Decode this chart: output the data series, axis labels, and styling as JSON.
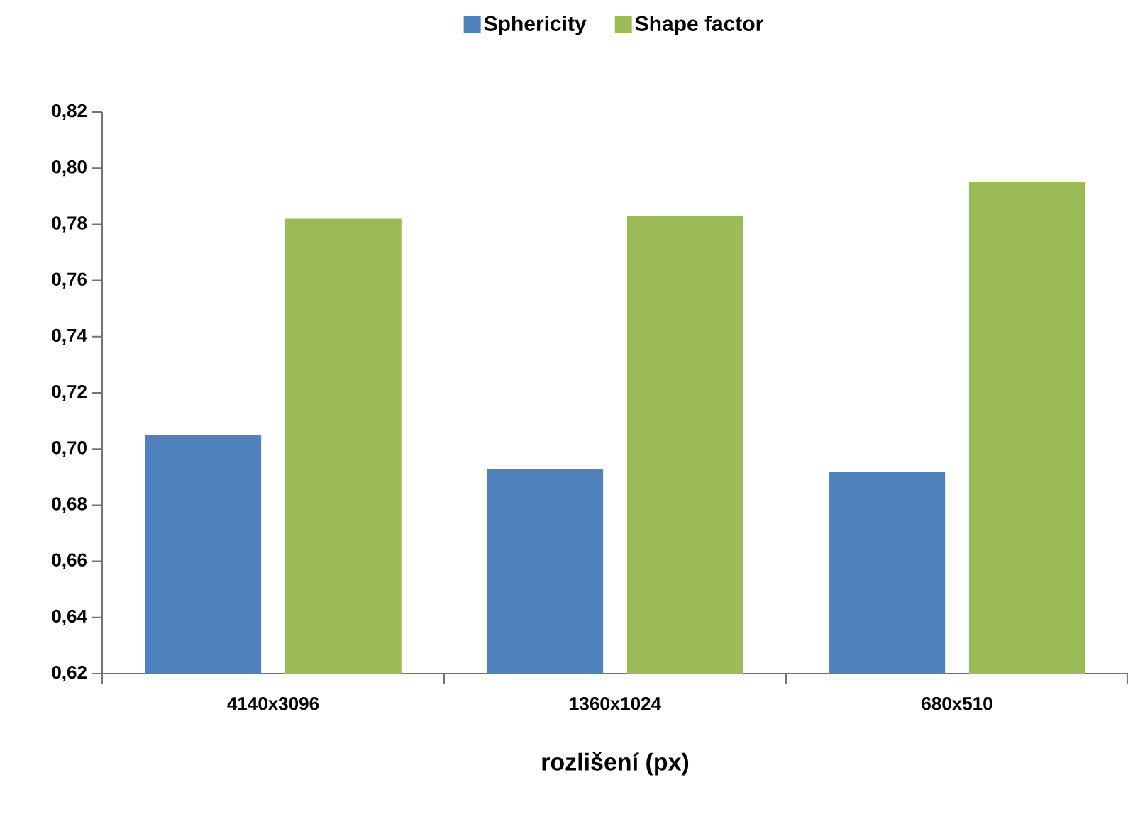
{
  "chart_data": {
    "type": "bar",
    "xlabel": "rozlišení (px)",
    "categories": [
      "4140x3096",
      "1360x1024",
      "680x510"
    ],
    "series": [
      {
        "name": "Sphericity",
        "color": "#4f81bd",
        "values": [
          0.705,
          0.693,
          0.692
        ]
      },
      {
        "name": "Shape factor",
        "color": "#9bbb59",
        "values": [
          0.782,
          0.783,
          0.795
        ]
      }
    ],
    "ylim": [
      0.62,
      0.82
    ],
    "yticks": [
      {
        "value": 0.62,
        "label": "0,62"
      },
      {
        "value": 0.64,
        "label": "0,64"
      },
      {
        "value": 0.66,
        "label": "0,66"
      },
      {
        "value": 0.68,
        "label": "0,68"
      },
      {
        "value": 0.7,
        "label": "0,70"
      },
      {
        "value": 0.72,
        "label": "0,72"
      },
      {
        "value": 0.74,
        "label": "0,74"
      },
      {
        "value": 0.76,
        "label": "0,76"
      },
      {
        "value": 0.78,
        "label": "0,78"
      },
      {
        "value": 0.8,
        "label": "0,80"
      },
      {
        "value": 0.82,
        "label": "0,82"
      }
    ],
    "legend": "top"
  }
}
